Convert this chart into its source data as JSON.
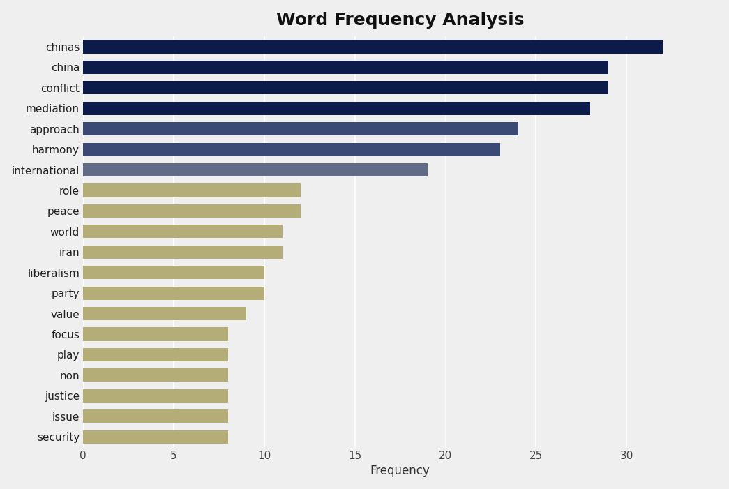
{
  "title": "Word Frequency Analysis",
  "xlabel": "Frequency",
  "categories": [
    "chinas",
    "china",
    "conflict",
    "mediation",
    "approach",
    "harmony",
    "international",
    "role",
    "peace",
    "world",
    "iran",
    "liberalism",
    "party",
    "value",
    "focus",
    "play",
    "non",
    "justice",
    "issue",
    "security"
  ],
  "values": [
    32,
    29,
    29,
    28,
    24,
    23,
    19,
    12,
    12,
    11,
    11,
    10,
    10,
    9,
    8,
    8,
    8,
    8,
    8,
    8
  ],
  "colors": [
    "#0d1b4b",
    "#0d1b4b",
    "#0d1b4b",
    "#0d1b4b",
    "#3a4a75",
    "#3a4a75",
    "#626b85",
    "#b5ad78",
    "#b5ad78",
    "#b5ad78",
    "#b5ad78",
    "#b5ad78",
    "#b5ad78",
    "#b5ad78",
    "#b5ad78",
    "#b5ad78",
    "#b5ad78",
    "#b5ad78",
    "#b5ad78",
    "#b5ad78"
  ],
  "xlim": [
    0,
    35
  ],
  "background_color": "#efefef",
  "plot_bg_color": "#efefef",
  "title_fontsize": 18,
  "label_fontsize": 11,
  "tick_fontsize": 11
}
